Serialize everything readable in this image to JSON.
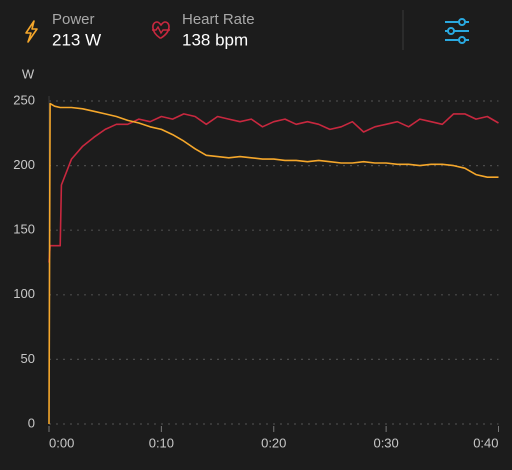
{
  "summary": [
    {
      "label": "Power",
      "value": "213 W"
    },
    {
      "label": "Heart Rate",
      "value": "138 bpm"
    }
  ],
  "chart_data": {
    "type": "line",
    "y_label": "W",
    "x": [
      0,
      0.1,
      0.5,
      1,
      1.1,
      2,
      3,
      4,
      5,
      6,
      7,
      8,
      9,
      10,
      11,
      12,
      13,
      14,
      15,
      16,
      17,
      18,
      19,
      20,
      21,
      22,
      23,
      24,
      25,
      26,
      27,
      28,
      29,
      30,
      31,
      32,
      33,
      34,
      35,
      36,
      37,
      38,
      39,
      40
    ],
    "series": [
      {
        "name": "Power",
        "color": "#f5a72b",
        "values": [
          0,
          248,
          246,
          245,
          245,
          245,
          244,
          242,
          240,
          238,
          235,
          233,
          230,
          228,
          224,
          219,
          213,
          208,
          207,
          206,
          207,
          206,
          205,
          205,
          204,
          204,
          203,
          204,
          203,
          202,
          202,
          203,
          202,
          202,
          201,
          201,
          200,
          201,
          201,
          200,
          198,
          193,
          191,
          191
        ]
      },
      {
        "name": "Heart Rate",
        "color": "#c8283f",
        "values": [
          125,
          138,
          138,
          138,
          185,
          205,
          215,
          222,
          228,
          232,
          232,
          236,
          234,
          238,
          236,
          240,
          238,
          232,
          238,
          236,
          234,
          236,
          230,
          234,
          236,
          232,
          234,
          232,
          228,
          230,
          234,
          226,
          230,
          232,
          234,
          230,
          236,
          234,
          232,
          240,
          240,
          236,
          238,
          233
        ]
      }
    ],
    "xlim": [
      0,
      40
    ],
    "xticks": [
      {
        "value": 0,
        "label": "0:00"
      },
      {
        "value": 10,
        "label": "0:10"
      },
      {
        "value": 20,
        "label": "0:20"
      },
      {
        "value": 30,
        "label": "0:30"
      },
      {
        "value": 40,
        "label": "0:40"
      }
    ],
    "ylim": [
      0,
      250
    ],
    "yticks": [
      0,
      50,
      100,
      150,
      200,
      250
    ],
    "grid": true
  }
}
